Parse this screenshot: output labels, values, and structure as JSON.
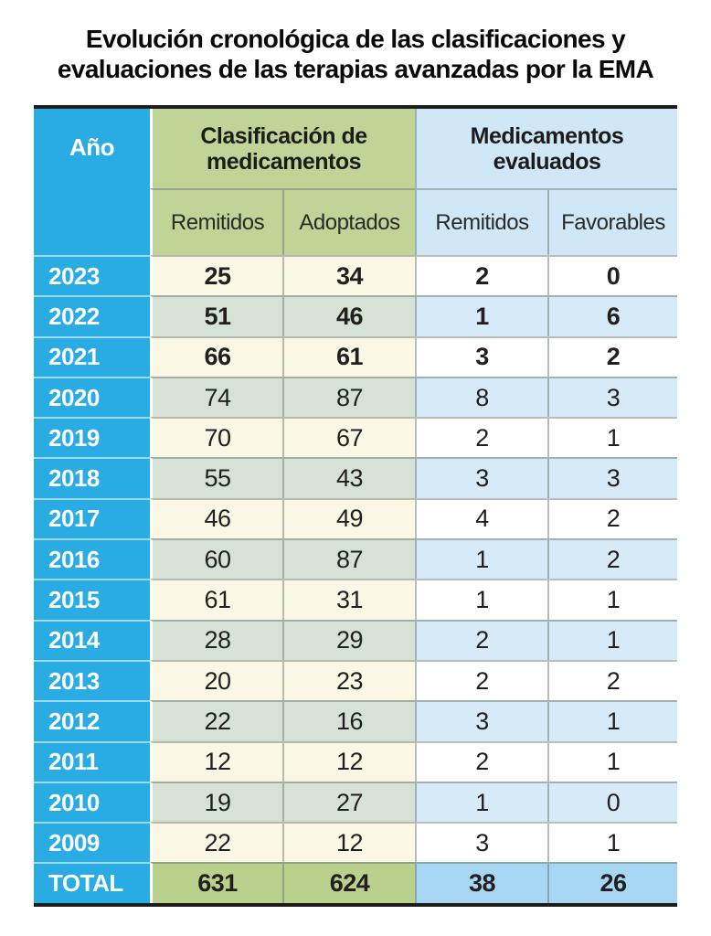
{
  "title": {
    "full": "Evolución cronológica de las clasificaciones y evaluaciones de las terapias avanzadas por la EMA",
    "line1": "Evolución cronológica de las clasificaciones y",
    "line2": "evaluaciones de las terapias avanzadas por la EMA"
  },
  "table": {
    "corner_header": "Año",
    "groups": [
      {
        "label": "Clasificación de medicamentos",
        "columns": [
          "Remitidos",
          "Adoptados"
        ]
      },
      {
        "label": "Medicamentos evaluados",
        "columns": [
          "Remitidos",
          "Favorables"
        ]
      }
    ],
    "rows": [
      {
        "year": "2023",
        "values": [
          25,
          34,
          2,
          0
        ],
        "highlight": true
      },
      {
        "year": "2022",
        "values": [
          51,
          46,
          1,
          6
        ],
        "highlight": true
      },
      {
        "year": "2021",
        "values": [
          66,
          61,
          3,
          2
        ],
        "highlight": true
      },
      {
        "year": "2020",
        "values": [
          74,
          87,
          8,
          3
        ],
        "highlight": false
      },
      {
        "year": "2019",
        "values": [
          70,
          67,
          2,
          1
        ],
        "highlight": false
      },
      {
        "year": "2018",
        "values": [
          55,
          43,
          3,
          3
        ],
        "highlight": false
      },
      {
        "year": "2017",
        "values": [
          46,
          49,
          4,
          2
        ],
        "highlight": false
      },
      {
        "year": "2016",
        "values": [
          60,
          87,
          1,
          2
        ],
        "highlight": false
      },
      {
        "year": "2015",
        "values": [
          61,
          31,
          1,
          1
        ],
        "highlight": false
      },
      {
        "year": "2014",
        "values": [
          28,
          29,
          2,
          1
        ],
        "highlight": false
      },
      {
        "year": "2013",
        "values": [
          20,
          23,
          2,
          2
        ],
        "highlight": false
      },
      {
        "year": "2012",
        "values": [
          22,
          16,
          3,
          1
        ],
        "highlight": false
      },
      {
        "year": "2011",
        "values": [
          12,
          12,
          2,
          1
        ],
        "highlight": false
      },
      {
        "year": "2010",
        "values": [
          19,
          27,
          1,
          0
        ],
        "highlight": false
      },
      {
        "year": "2009",
        "values": [
          22,
          12,
          3,
          1
        ],
        "highlight": false
      }
    ],
    "total": {
      "label": "TOTAL",
      "values": [
        631,
        624,
        38,
        26
      ]
    }
  },
  "chart_data": {
    "type": "table",
    "title": "Evolución cronológica de las clasificaciones y evaluaciones de las terapias avanzadas por la EMA",
    "categories": [
      "2023",
      "2022",
      "2021",
      "2020",
      "2019",
      "2018",
      "2017",
      "2016",
      "2015",
      "2014",
      "2013",
      "2012",
      "2011",
      "2010",
      "2009"
    ],
    "series": [
      {
        "name": "Clasificación de medicamentos - Remitidos",
        "values": [
          25,
          51,
          66,
          74,
          70,
          55,
          46,
          60,
          61,
          28,
          20,
          22,
          12,
          19,
          22
        ],
        "total": 631
      },
      {
        "name": "Clasificación de medicamentos - Adoptados",
        "values": [
          34,
          46,
          61,
          87,
          67,
          43,
          49,
          87,
          31,
          29,
          23,
          16,
          12,
          27,
          12
        ],
        "total": 624
      },
      {
        "name": "Medicamentos evaluados - Remitidos",
        "values": [
          2,
          1,
          3,
          8,
          2,
          3,
          4,
          1,
          1,
          2,
          2,
          3,
          2,
          1,
          3
        ],
        "total": 38
      },
      {
        "name": "Medicamentos evaluados - Favorables",
        "values": [
          0,
          6,
          2,
          3,
          1,
          3,
          2,
          2,
          1,
          1,
          2,
          1,
          1,
          0,
          1
        ],
        "total": 26
      }
    ]
  },
  "colors": {
    "cyan": "#29ace3",
    "hgreen": "#c1d498",
    "hblue": "#cfe7f6",
    "cream": "#faf7e5",
    "sage": "#d7e2d6",
    "pblue": "#d6eaf7",
    "tgreen": "#b9d18c",
    "tblue": "#a6d6f1",
    "border": "#1d1d1b",
    "ink": "#231f20"
  }
}
